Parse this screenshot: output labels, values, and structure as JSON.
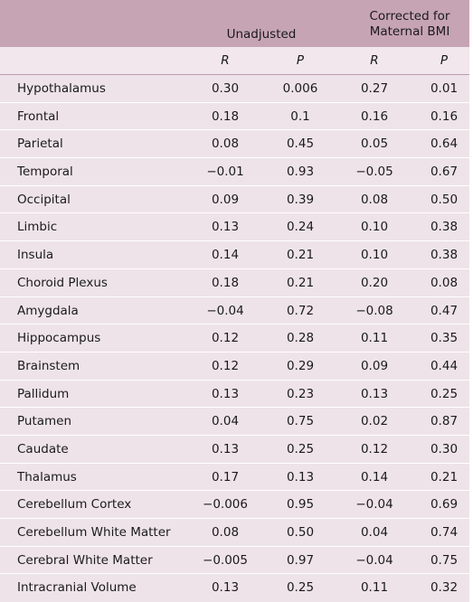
{
  "header": {
    "unadjusted": "Unadjusted",
    "corrected_line1": "Corrected for",
    "corrected_line2": "Maternal BMI",
    "sub_r1": "R",
    "sub_p1": "P",
    "sub_r2": "R",
    "sub_p2": "P"
  },
  "rows": [
    {
      "region": "Hypothalamus",
      "r_unadj": "0.30",
      "p_unadj": "0.006",
      "r_bmi": "0.27",
      "p_bmi": "0.01"
    },
    {
      "region": "Frontal",
      "r_unadj": "0.18",
      "p_unadj": "0.1",
      "r_bmi": "0.16",
      "p_bmi": "0.16"
    },
    {
      "region": "Parietal",
      "r_unadj": "0.08",
      "p_unadj": "0.45",
      "r_bmi": "0.05",
      "p_bmi": "0.64"
    },
    {
      "region": "Temporal",
      "r_unadj": "−0.01",
      "p_unadj": "0.93",
      "r_bmi": "−0.05",
      "p_bmi": "0.67"
    },
    {
      "region": "Occipital",
      "r_unadj": "0.09",
      "p_unadj": "0.39",
      "r_bmi": "0.08",
      "p_bmi": "0.50"
    },
    {
      "region": "Limbic",
      "r_unadj": "0.13",
      "p_unadj": "0.24",
      "r_bmi": "0.10",
      "p_bmi": "0.38"
    },
    {
      "region": "Insula",
      "r_unadj": "0.14",
      "p_unadj": "0.21",
      "r_bmi": "0.10",
      "p_bmi": "0.38"
    },
    {
      "region": "Choroid Plexus",
      "r_unadj": "0.18",
      "p_unadj": "0.21",
      "r_bmi": "0.20",
      "p_bmi": "0.08"
    },
    {
      "region": "Amygdala",
      "r_unadj": "−0.04",
      "p_unadj": "0.72",
      "r_bmi": "−0.08",
      "p_bmi": "0.47"
    },
    {
      "region": "Hippocampus",
      "r_unadj": "0.12",
      "p_unadj": "0.28",
      "r_bmi": "0.11",
      "p_bmi": "0.35"
    },
    {
      "region": "Brainstem",
      "r_unadj": "0.12",
      "p_unadj": "0.29",
      "r_bmi": "0.09",
      "p_bmi": "0.44"
    },
    {
      "region": "Pallidum",
      "r_unadj": "0.13",
      "p_unadj": "0.23",
      "r_bmi": "0.13",
      "p_bmi": "0.25"
    },
    {
      "region": "Putamen",
      "r_unadj": "0.04",
      "p_unadj": "0.75",
      "r_bmi": "0.02",
      "p_bmi": "0.87"
    },
    {
      "region": "Caudate",
      "r_unadj": "0.13",
      "p_unadj": "0.25",
      "r_bmi": "0.12",
      "p_bmi": "0.30"
    },
    {
      "region": "Thalamus",
      "r_unadj": "0.17",
      "p_unadj": "0.13",
      "r_bmi": "0.14",
      "p_bmi": "0.21"
    },
    {
      "region": "Cerebellum Cortex",
      "r_unadj": "−0.006",
      "p_unadj": "0.95",
      "r_bmi": "−0.04",
      "p_bmi": "0.69"
    },
    {
      "region": "Cerebellum White Matter",
      "r_unadj": "0.08",
      "p_unadj": "0.50",
      "r_bmi": "0.04",
      "p_bmi": "0.74"
    },
    {
      "region": "Cerebral White Matter",
      "r_unadj": "−0.005",
      "p_unadj": "0.97",
      "r_bmi": "−0.04",
      "p_bmi": "0.75"
    },
    {
      "region": "Intracranial Volume",
      "r_unadj": "0.13",
      "p_unadj": "0.25",
      "r_bmi": "0.11",
      "p_bmi": "0.32"
    }
  ]
}
